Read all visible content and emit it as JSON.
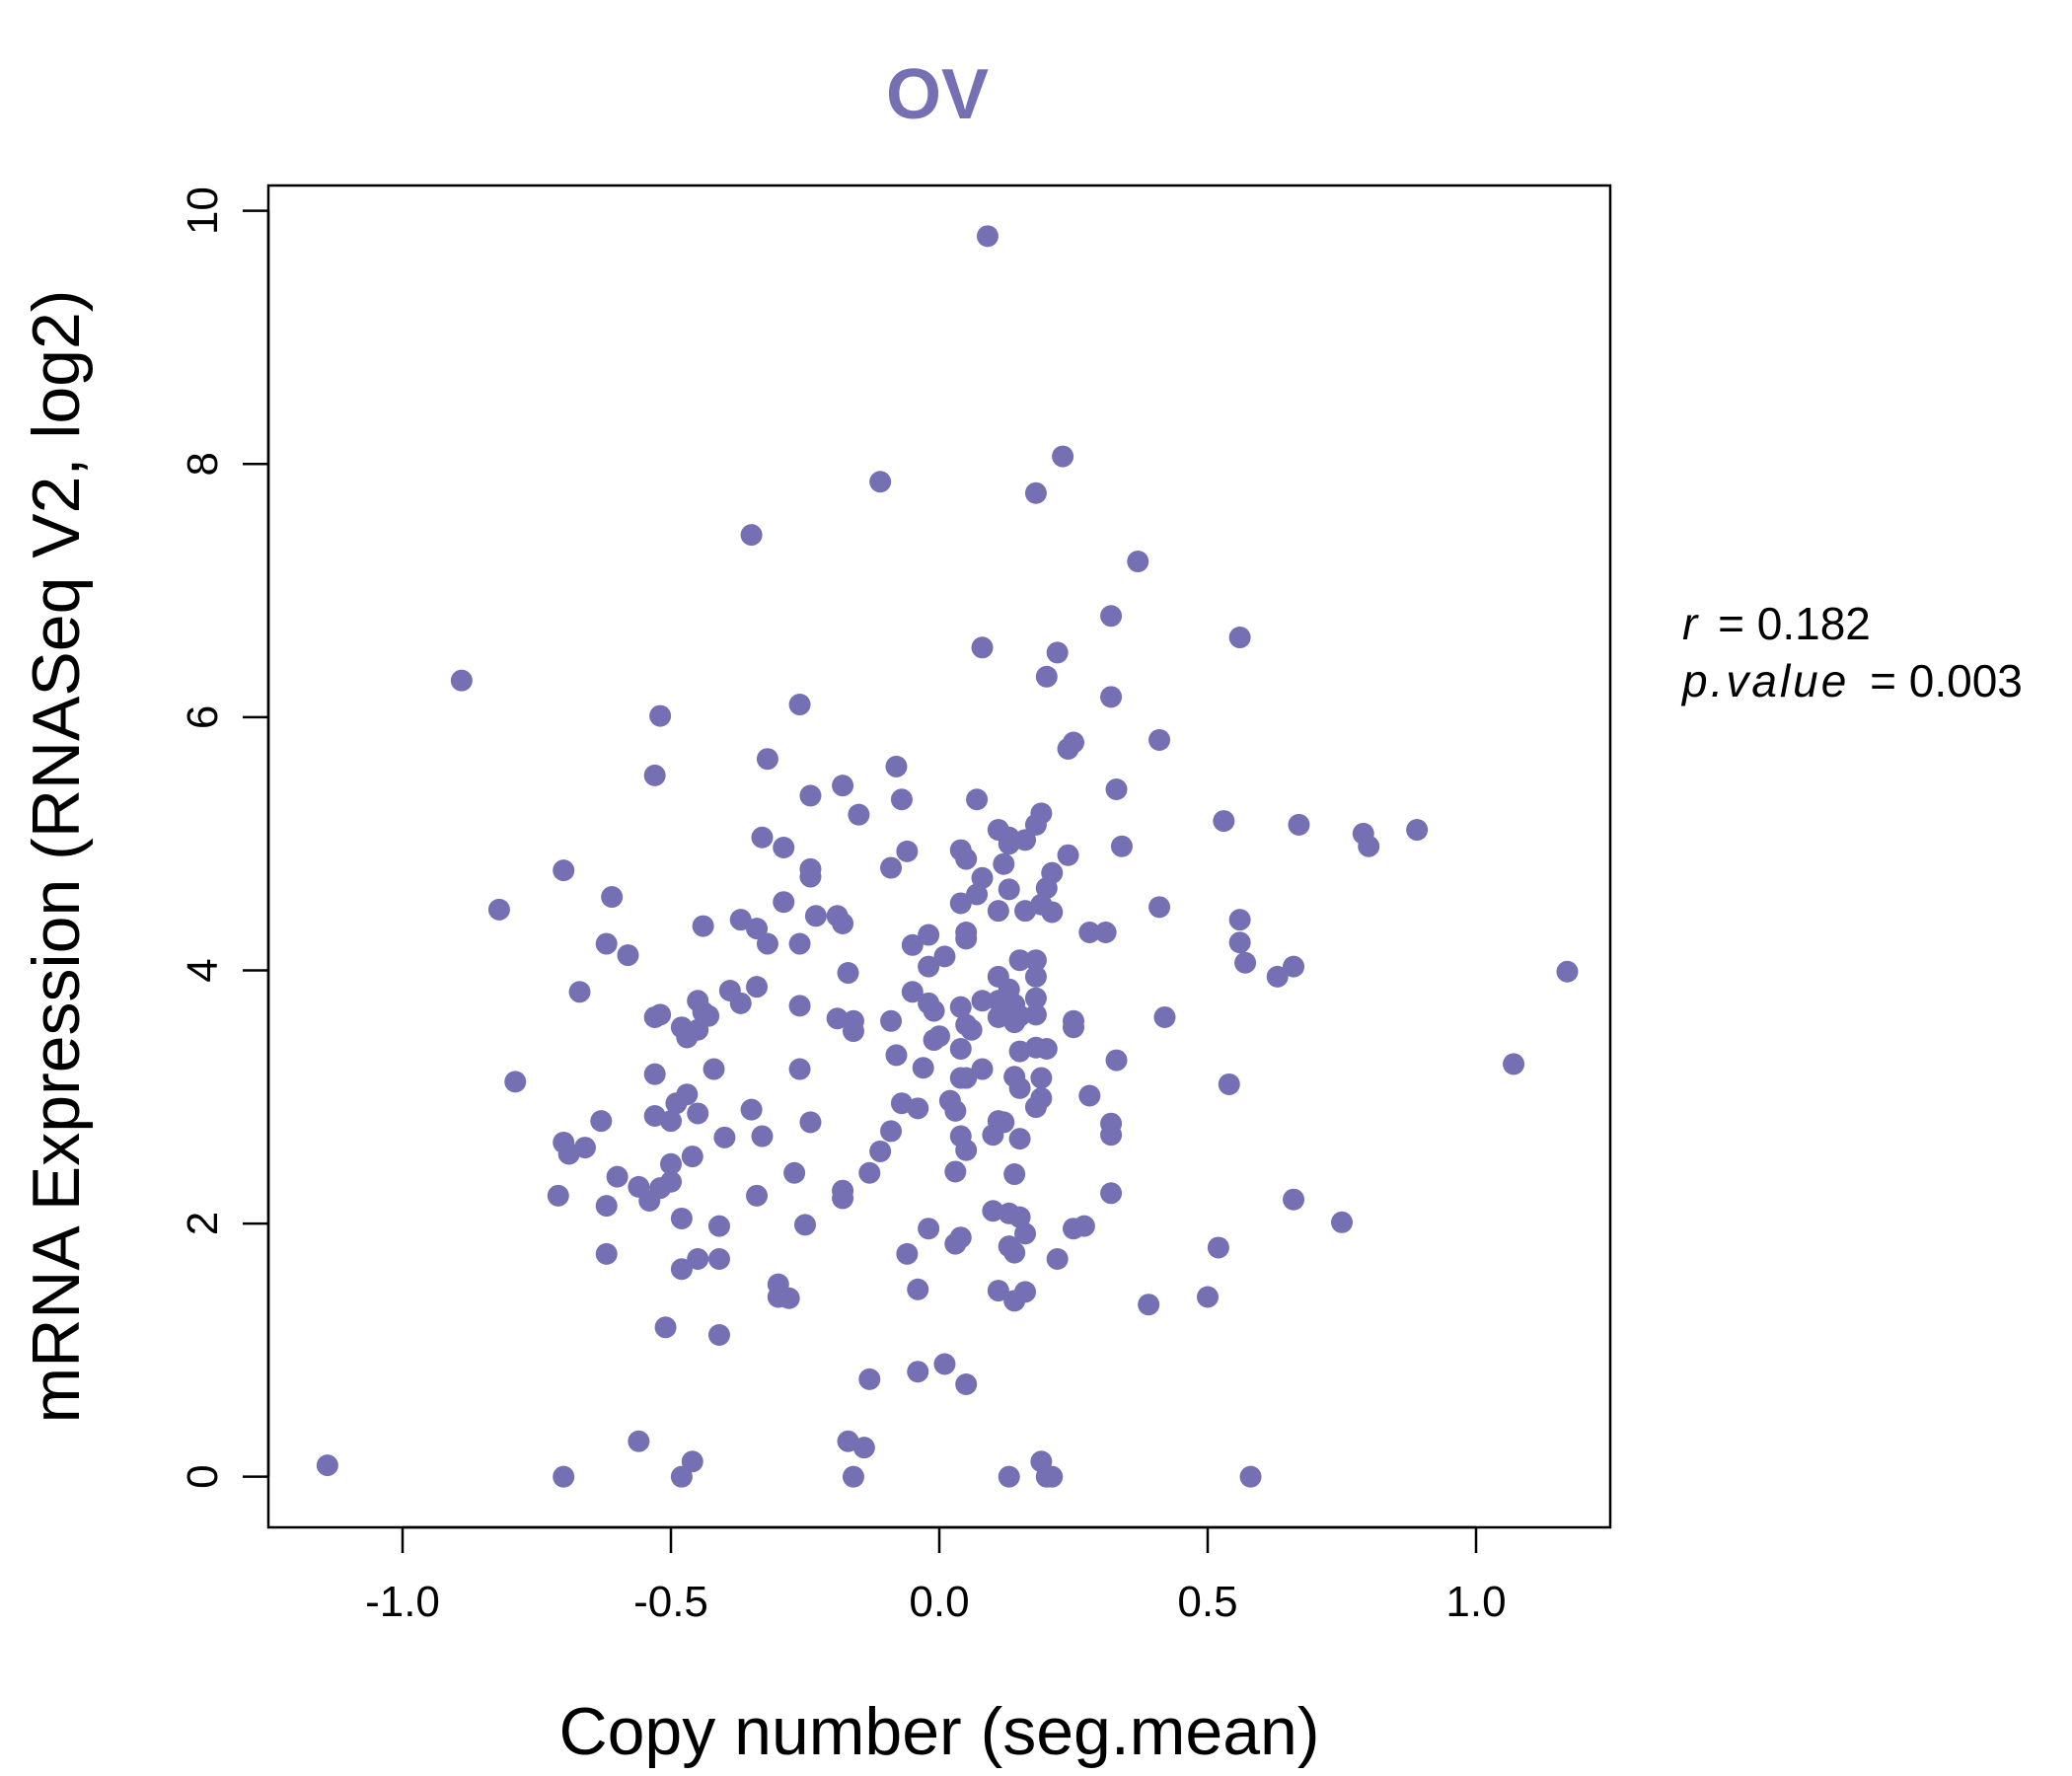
{
  "chart_data": {
    "type": "scatter",
    "title": "OV",
    "xlabel": "Copy number (seg.mean)",
    "ylabel": "mRNA Expression (RNASeq V2, log2)",
    "xlim": [
      -1.25,
      1.25
    ],
    "ylim": [
      -0.4,
      10.2
    ],
    "xticks": [
      -1.0,
      -0.5,
      0.0,
      0.5,
      1.0
    ],
    "xtick_labels": [
      "-1.0",
      "-0.5",
      "0.0",
      "0.5",
      "1.0"
    ],
    "yticks": [
      0,
      2,
      4,
      6,
      8,
      10
    ],
    "ytick_labels": [
      "0",
      "2",
      "4",
      "6",
      "8",
      "10"
    ],
    "grid": false,
    "legend": "none",
    "point_color": "#7570b3",
    "annotations": {
      "r_label": "r",
      "r_value": "= 0.182",
      "p_label": "p.value",
      "p_value": "= 0.003"
    },
    "points": [
      [
        0.09,
        9.8
      ],
      [
        0.23,
        8.06
      ],
      [
        -0.11,
        7.86
      ],
      [
        0.18,
        7.77
      ],
      [
        -0.35,
        7.44
      ],
      [
        0.37,
        7.23
      ],
      [
        0.32,
        6.8
      ],
      [
        0.56,
        6.63
      ],
      [
        0.08,
        6.55
      ],
      [
        0.22,
        6.51
      ],
      [
        0.2,
        6.32
      ],
      [
        -0.89,
        6.29
      ],
      [
        0.32,
        6.16
      ],
      [
        -0.26,
        6.1
      ],
      [
        -0.52,
        6.01
      ],
      [
        0.41,
        5.82
      ],
      [
        0.25,
        5.8
      ],
      [
        0.24,
        5.75
      ],
      [
        -0.32,
        5.67
      ],
      [
        -0.08,
        5.61
      ],
      [
        -0.53,
        5.54
      ],
      [
        -0.18,
        5.46
      ],
      [
        0.33,
        5.43
      ],
      [
        -0.24,
        5.38
      ],
      [
        -0.07,
        5.35
      ],
      [
        0.07,
        5.35
      ],
      [
        0.19,
        5.24
      ],
      [
        -0.15,
        5.23
      ],
      [
        0.53,
        5.18
      ],
      [
        0.18,
        5.15
      ],
      [
        0.67,
        5.15
      ],
      [
        0.11,
        5.11
      ],
      [
        0.89,
        5.11
      ],
      [
        0.79,
        5.08
      ],
      [
        -0.33,
        5.05
      ],
      [
        0.13,
        5.05
      ],
      [
        0.16,
        5.03
      ],
      [
        0.13,
        5.0
      ],
      [
        0.8,
        4.98
      ],
      [
        -0.29,
        4.97
      ],
      [
        0.34,
        4.98
      ],
      [
        0.04,
        4.95
      ],
      [
        -0.06,
        4.94
      ],
      [
        0.24,
        4.91
      ],
      [
        0.05,
        4.88
      ],
      [
        0.12,
        4.84
      ],
      [
        -0.09,
        4.81
      ],
      [
        -0.24,
        4.8
      ],
      [
        -0.7,
        4.79
      ],
      [
        0.21,
        4.77
      ],
      [
        -0.24,
        4.74
      ],
      [
        0.08,
        4.73
      ],
      [
        0.13,
        4.64
      ],
      [
        0.2,
        4.65
      ],
      [
        0.07,
        4.6
      ],
      [
        -0.61,
        4.58
      ],
      [
        -0.29,
        4.54
      ],
      [
        0.04,
        4.53
      ],
      [
        0.41,
        4.5
      ],
      [
        0.19,
        4.52
      ],
      [
        -0.82,
        4.48
      ],
      [
        0.11,
        4.47
      ],
      [
        0.16,
        4.47
      ],
      [
        0.21,
        4.46
      ],
      [
        -0.23,
        4.43
      ],
      [
        -0.19,
        4.43
      ],
      [
        -0.37,
        4.4
      ],
      [
        0.56,
        4.4
      ],
      [
        -0.18,
        4.37
      ],
      [
        -0.44,
        4.35
      ],
      [
        -0.34,
        4.33
      ],
      [
        0.05,
        4.3
      ],
      [
        0.28,
        4.3
      ],
      [
        0.31,
        4.3
      ],
      [
        -0.02,
        4.28
      ],
      [
        0.05,
        4.25
      ],
      [
        0.56,
        4.22
      ],
      [
        -0.62,
        4.21
      ],
      [
        -0.32,
        4.21
      ],
      [
        -0.26,
        4.21
      ],
      [
        -0.05,
        4.2
      ],
      [
        -0.58,
        4.12
      ],
      [
        0.01,
        4.11
      ],
      [
        0.15,
        4.08
      ],
      [
        0.18,
        4.08
      ],
      [
        0.57,
        4.06
      ],
      [
        -0.02,
        4.03
      ],
      [
        0.66,
        4.03
      ],
      [
        1.17,
        3.99
      ],
      [
        -0.17,
        3.98
      ],
      [
        0.63,
        3.95
      ],
      [
        0.11,
        3.95
      ],
      [
        0.18,
        3.95
      ],
      [
        -0.34,
        3.87
      ],
      [
        -0.39,
        3.84
      ],
      [
        0.13,
        3.85
      ],
      [
        -0.67,
        3.83
      ],
      [
        -0.05,
        3.83
      ],
      [
        0.18,
        3.78
      ],
      [
        -0.45,
        3.76
      ],
      [
        -0.37,
        3.74
      ],
      [
        -0.26,
        3.72
      ],
      [
        0.11,
        3.76
      ],
      [
        0.08,
        3.76
      ],
      [
        -0.02,
        3.74
      ],
      [
        0.14,
        3.73
      ],
      [
        0.04,
        3.71
      ],
      [
        -0.01,
        3.68
      ],
      [
        -0.44,
        3.67
      ],
      [
        -0.52,
        3.65
      ],
      [
        -0.53,
        3.63
      ],
      [
        -0.43,
        3.64
      ],
      [
        0.18,
        3.65
      ],
      [
        0.15,
        3.64
      ],
      [
        0.11,
        3.63
      ],
      [
        0.42,
        3.63
      ],
      [
        -0.19,
        3.62
      ],
      [
        -0.16,
        3.6
      ],
      [
        -0.09,
        3.6
      ],
      [
        0.25,
        3.6
      ],
      [
        0.05,
        3.57
      ],
      [
        0.14,
        3.59
      ],
      [
        -0.48,
        3.55
      ],
      [
        -0.45,
        3.53
      ],
      [
        0.06,
        3.53
      ],
      [
        0.25,
        3.55
      ],
      [
        -0.47,
        3.47
      ],
      [
        0.0,
        3.48
      ],
      [
        -0.16,
        3.52
      ],
      [
        0.18,
        3.39
      ],
      [
        0.2,
        3.38
      ],
      [
        -0.01,
        3.45
      ],
      [
        0.04,
        3.38
      ],
      [
        0.15,
        3.36
      ],
      [
        1.07,
        3.26
      ],
      [
        0.33,
        3.29
      ],
      [
        -0.08,
        3.33
      ],
      [
        -0.42,
        3.22
      ],
      [
        -0.26,
        3.22
      ],
      [
        -0.03,
        3.23
      ],
      [
        0.08,
        3.22
      ],
      [
        -0.53,
        3.18
      ],
      [
        0.04,
        3.15
      ],
      [
        0.05,
        3.15
      ],
      [
        0.19,
        3.15
      ],
      [
        0.14,
        3.16
      ],
      [
        0.54,
        3.1
      ],
      [
        0.15,
        3.07
      ],
      [
        -0.79,
        3.12
      ],
      [
        -0.47,
        3.02
      ],
      [
        -0.49,
        2.95
      ],
      [
        0.28,
        3.01
      ],
      [
        0.19,
        2.99
      ],
      [
        0.02,
        2.97
      ],
      [
        -0.07,
        2.95
      ],
      [
        0.18,
        2.92
      ],
      [
        -0.04,
        2.91
      ],
      [
        -0.35,
        2.9
      ],
      [
        -0.45,
        2.87
      ],
      [
        0.03,
        2.89
      ],
      [
        -0.53,
        2.85
      ],
      [
        -0.5,
        2.81
      ],
      [
        -0.63,
        2.81
      ],
      [
        -0.24,
        2.8
      ],
      [
        0.11,
        2.81
      ],
      [
        0.12,
        2.8
      ],
      [
        0.32,
        2.79
      ],
      [
        -0.09,
        2.73
      ],
      [
        0.32,
        2.7
      ],
      [
        0.04,
        2.69
      ],
      [
        0.1,
        2.7
      ],
      [
        -0.33,
        2.69
      ],
      [
        -0.4,
        2.68
      ],
      [
        0.15,
        2.67
      ],
      [
        -0.7,
        2.64
      ],
      [
        -0.66,
        2.6
      ],
      [
        -0.11,
        2.57
      ],
      [
        0.05,
        2.58
      ],
      [
        -0.69,
        2.55
      ],
      [
        -0.46,
        2.53
      ],
      [
        -0.5,
        2.47
      ],
      [
        0.03,
        2.41
      ],
      [
        -0.27,
        2.4
      ],
      [
        -0.13,
        2.4
      ],
      [
        0.14,
        2.39
      ],
      [
        -0.6,
        2.37
      ],
      [
        -0.5,
        2.33
      ],
      [
        -0.56,
        2.29
      ],
      [
        -0.52,
        2.28
      ],
      [
        -0.18,
        2.26
      ],
      [
        0.32,
        2.24
      ],
      [
        -0.34,
        2.22
      ],
      [
        -0.71,
        2.22
      ],
      [
        -0.18,
        2.2
      ],
      [
        0.66,
        2.19
      ],
      [
        -0.54,
        2.18
      ],
      [
        -0.62,
        2.14
      ],
      [
        0.1,
        2.1
      ],
      [
        0.13,
        2.08
      ],
      [
        0.15,
        2.05
      ],
      [
        -0.48,
        2.04
      ],
      [
        0.75,
        2.01
      ],
      [
        -0.25,
        1.99
      ],
      [
        -0.41,
        1.98
      ],
      [
        0.27,
        1.98
      ],
      [
        0.25,
        1.96
      ],
      [
        -0.02,
        1.96
      ],
      [
        0.16,
        1.92
      ],
      [
        0.04,
        1.89
      ],
      [
        0.03,
        1.84
      ],
      [
        0.52,
        1.81
      ],
      [
        0.13,
        1.82
      ],
      [
        0.14,
        1.77
      ],
      [
        -0.62,
        1.76
      ],
      [
        -0.06,
        1.76
      ],
      [
        -0.45,
        1.72
      ],
      [
        -0.41,
        1.72
      ],
      [
        0.22,
        1.72
      ],
      [
        -0.48,
        1.64
      ],
      [
        -0.3,
        1.52
      ],
      [
        0.11,
        1.47
      ],
      [
        0.16,
        1.46
      ],
      [
        -0.04,
        1.48
      ],
      [
        -0.3,
        1.42
      ],
      [
        -0.28,
        1.41
      ],
      [
        0.5,
        1.42
      ],
      [
        0.14,
        1.39
      ],
      [
        0.39,
        1.36
      ],
      [
        -0.51,
        1.18
      ],
      [
        -0.41,
        1.12
      ],
      [
        0.01,
        0.89
      ],
      [
        -0.04,
        0.83
      ],
      [
        -0.13,
        0.77
      ],
      [
        0.05,
        0.73
      ],
      [
        -0.56,
        0.28
      ],
      [
        -0.17,
        0.28
      ],
      [
        -0.14,
        0.23
      ],
      [
        -0.46,
        0.12
      ],
      [
        0.19,
        0.12
      ],
      [
        -1.14,
        0.09
      ],
      [
        -0.7,
        0.0
      ],
      [
        -0.48,
        0.0
      ],
      [
        -0.16,
        0.0
      ],
      [
        0.13,
        0.0
      ],
      [
        0.2,
        0.0
      ],
      [
        0.21,
        0.0
      ],
      [
        0.58,
        0.0
      ]
    ]
  }
}
